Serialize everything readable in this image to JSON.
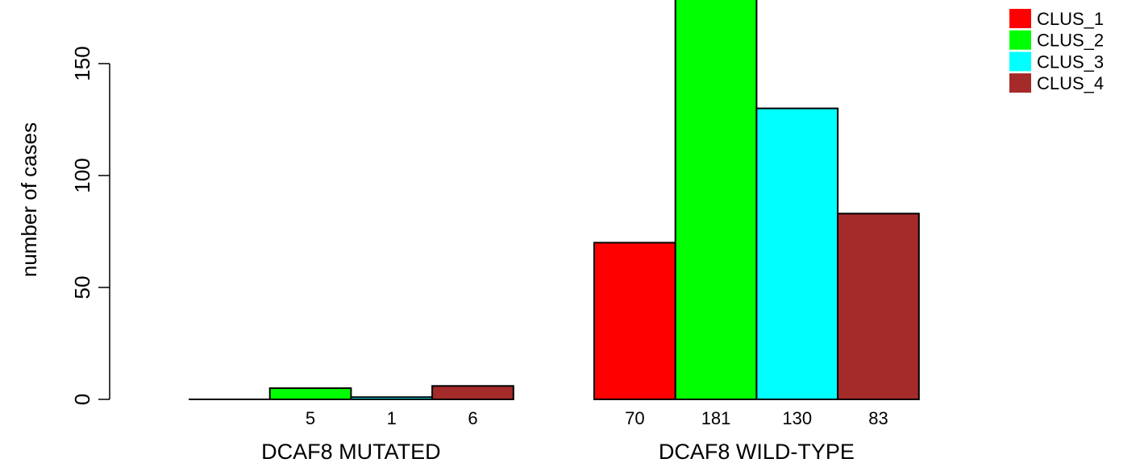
{
  "chart_data": {
    "type": "bar",
    "groups": [
      "DCAF8 MUTATED",
      "DCAF8 WILD-TYPE"
    ],
    "series": [
      {
        "name": "CLUS_1",
        "color": "#ff0000",
        "values": [
          0,
          70
        ],
        "labels": [
          "",
          "70"
        ]
      },
      {
        "name": "CLUS_2",
        "color": "#00ff00",
        "values": [
          5,
          181
        ],
        "labels": [
          "5",
          "181"
        ]
      },
      {
        "name": "CLUS_3",
        "color": "#00ffff",
        "values": [
          1,
          130
        ],
        "labels": [
          "1",
          "130"
        ]
      },
      {
        "name": "CLUS_4",
        "color": "#a52a2a",
        "values": [
          6,
          83
        ],
        "labels": [
          "6",
          "83"
        ]
      }
    ],
    "ylabel": "number of cases",
    "xlabel": "",
    "yticks": [
      0,
      50,
      100,
      150
    ],
    "ylim": [
      0,
      181
    ],
    "legend": "top-right"
  }
}
